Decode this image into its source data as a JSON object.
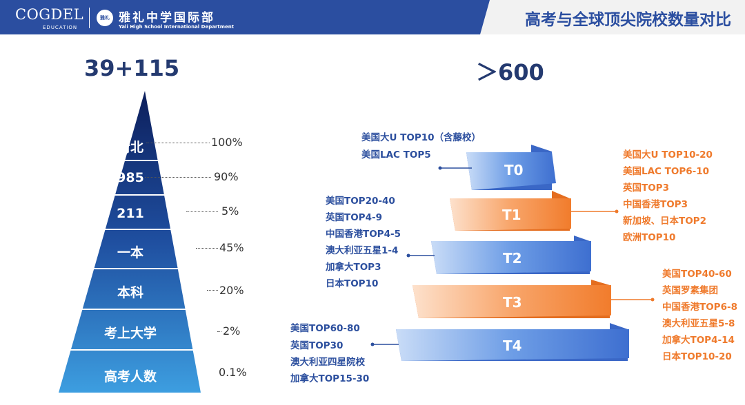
{
  "header": {
    "logo_cogdel": "COGDEL",
    "logo_education": "EDUCATION",
    "seal": "雅礼",
    "school_cn": "雅礼中学国际部",
    "school_en": "Yali High School International Department",
    "title": "高考与全球顶尖院校数量对比"
  },
  "left": {
    "headline": "39+115",
    "levels": [
      {
        "label": "清北",
        "pct": "100%"
      },
      {
        "label": "985",
        "pct": "90%"
      },
      {
        "label": "211",
        "pct": "5%"
      },
      {
        "label": "一本",
        "pct": "45%"
      },
      {
        "label": "本科",
        "pct": "20%"
      },
      {
        "label": "考上大学",
        "pct": "2%"
      },
      {
        "label": "高考人数",
        "pct": "0.1%"
      }
    ]
  },
  "right": {
    "headline": "＞600",
    "tiers": [
      {
        "label": "T0",
        "color": "blue",
        "items": [
          "美国大U TOP10（含藤校）",
          "美国LAC TOP5"
        ]
      },
      {
        "label": "T1",
        "color": "orange",
        "items": [
          "美国大U TOP10-20",
          "美国LAC TOP6-10",
          "英国TOP3",
          "中国香港TOP3",
          "新加坡、日本TOP2",
          "欧洲TOP10"
        ]
      },
      {
        "label": "T2",
        "color": "blue",
        "items": [
          "美国TOP20-40",
          "英国TOP4-9",
          "中国香港TOP4-5",
          "澳大利亚五星1-4",
          "加拿大TOP3",
          "日本TOP10"
        ]
      },
      {
        "label": "T3",
        "color": "orange",
        "items": [
          "美国TOP40-60",
          "英国罗素集团",
          "中国香港TOP6-8",
          "澳大利亚五星5-8",
          "加拿大TOP4-14",
          "日本TOP10-20"
        ]
      },
      {
        "label": "T4",
        "color": "blue",
        "items": [
          "美国TOP60-80",
          "英国TOP30",
          "澳大利亚四星院校",
          "加拿大TOP15-30"
        ]
      }
    ]
  },
  "colors": {
    "header": "#2b4ea0",
    "tier_blue": "#4f80d9",
    "tier_orange": "#f5914a",
    "text_blue": "#2c4f9e",
    "text_orange": "#ef7a2c"
  }
}
